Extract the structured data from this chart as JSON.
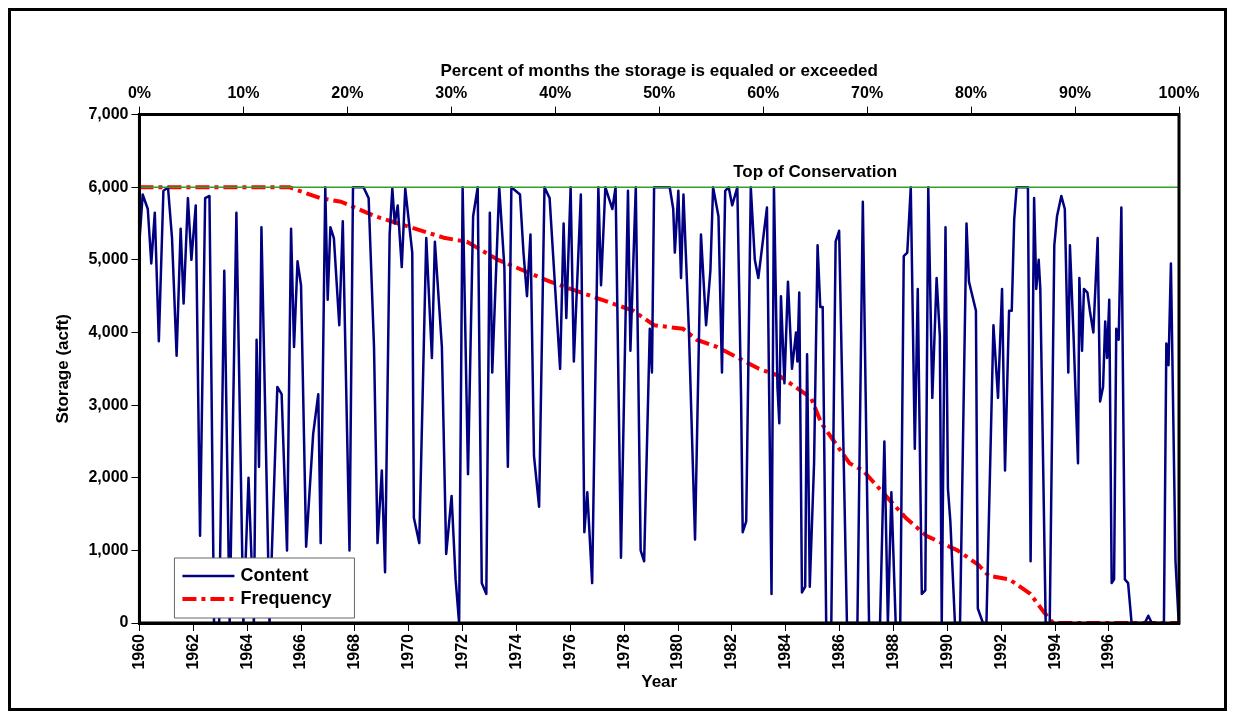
{
  "chart_data": {
    "type": "line",
    "xlabel": "Year",
    "x2label": "Percent of months the storage is equaled or exceeded",
    "ylabel": "Storage (acft)",
    "xlim": [
      1960,
      1998.6
    ],
    "xticks": [
      1960,
      1962,
      1964,
      1966,
      1968,
      1970,
      1972,
      1974,
      1976,
      1978,
      1980,
      1982,
      1984,
      1986,
      1988,
      1990,
      1992,
      1994,
      1996
    ],
    "x2lim": [
      0,
      100
    ],
    "x2ticks": [
      {
        "value": 0,
        "label": "0%"
      },
      {
        "value": 10,
        "label": "10%"
      },
      {
        "value": 20,
        "label": "20%"
      },
      {
        "value": 30,
        "label": "30%"
      },
      {
        "value": 40,
        "label": "40%"
      },
      {
        "value": 50,
        "label": "50%"
      },
      {
        "value": 60,
        "label": "60%"
      },
      {
        "value": 70,
        "label": "70%"
      },
      {
        "value": 80,
        "label": "80%"
      },
      {
        "value": 90,
        "label": "90%"
      },
      {
        "value": 100,
        "label": "100%"
      }
    ],
    "ylim": [
      0,
      7000
    ],
    "yticks": [
      0,
      {
        "value": 1000,
        "label": "1,000"
      },
      {
        "value": 2000,
        "label": "2,000"
      },
      {
        "value": 3000,
        "label": "3,000"
      },
      {
        "value": 4000,
        "label": "4,000"
      },
      {
        "value": 5000,
        "label": "5,000"
      },
      {
        "value": 6000,
        "label": "6,000"
      },
      {
        "value": 7000,
        "label": "7,000"
      }
    ],
    "grid": false,
    "legend": "bottom left",
    "marker": "none",
    "ref_lines": [
      {
        "axis": "y",
        "value": 6000,
        "label": "Top of Conservation",
        "color": "#33a02c"
      }
    ],
    "series": [
      {
        "name": "Content",
        "color": "#000080",
        "line_style": "solid",
        "x": [
          1960.0,
          1960.12,
          1960.31,
          1960.44,
          1960.57,
          1960.72,
          1960.89,
          1961.06,
          1961.21,
          1961.38,
          1961.53,
          1961.64,
          1961.8,
          1961.93,
          1962.09,
          1962.25,
          1962.44,
          1962.6,
          1962.77,
          1962.96,
          1963.15,
          1963.35,
          1963.6,
          1963.86,
          1964.05,
          1964.25,
          1964.35,
          1964.44,
          1964.53,
          1964.83,
          1965.12,
          1965.28,
          1965.48,
          1965.63,
          1965.74,
          1965.87,
          1966.0,
          1966.19,
          1966.45,
          1966.64,
          1966.73,
          1966.9,
          1966.99,
          1967.09,
          1967.22,
          1967.42,
          1967.55,
          1967.8,
          1967.93,
          1968.32,
          1968.51,
          1968.71,
          1968.84,
          1969.0,
          1969.12,
          1969.29,
          1969.39,
          1969.48,
          1969.59,
          1969.74,
          1969.87,
          1970.13,
          1970.19,
          1970.39,
          1970.65,
          1970.86,
          1970.97,
          1971.23,
          1971.39,
          1971.59,
          1971.74,
          1971.87,
          1972.0,
          1972.2,
          1972.39,
          1972.56,
          1972.71,
          1972.88,
          1973.01,
          1973.1,
          1973.36,
          1973.55,
          1973.68,
          1973.81,
          1974.13,
          1974.26,
          1974.39,
          1974.52,
          1974.65,
          1974.84,
          1975.04,
          1975.23,
          1975.62,
          1975.75,
          1975.85,
          1976.01,
          1976.13,
          1976.39,
          1976.52,
          1976.63,
          1976.81,
          1977.04,
          1977.14,
          1977.3,
          1977.56,
          1977.68,
          1977.88,
          1978.14,
          1978.23,
          1978.43,
          1978.61,
          1978.74,
          1978.95,
          1979.03,
          1979.11,
          1979.69,
          1979.82,
          1979.88,
          1980.01,
          1980.11,
          1980.2,
          1980.4,
          1980.63,
          1980.85,
          1981.04,
          1981.2,
          1981.3,
          1981.5,
          1981.63,
          1981.75,
          1981.88,
          1982.01,
          1982.2,
          1982.34,
          1982.4,
          1982.53,
          1982.7,
          1982.85,
          1982.98,
          1983.3,
          1983.47,
          1983.56,
          1983.69,
          1983.76,
          1983.82,
          1983.95,
          1984.08,
          1984.23,
          1984.38,
          1984.43,
          1984.5,
          1984.6,
          1984.72,
          1984.79,
          1984.89,
          1985.05,
          1985.18,
          1985.28,
          1985.37,
          1985.5,
          1985.69,
          1985.85,
          1985.98,
          1986.27,
          1986.66,
          1986.86,
          1987.09,
          1987.5,
          1987.66,
          1987.79,
          1987.92,
          1988.08,
          1988.25,
          1988.38,
          1988.51,
          1988.64,
          1988.79,
          1988.9,
          1989.05,
          1989.18,
          1989.29,
          1989.44,
          1989.6,
          1989.72,
          1989.79,
          1989.93,
          1990.02,
          1990.11,
          1990.28,
          1990.47,
          1990.71,
          1990.8,
          1991.06,
          1991.13,
          1991.32,
          1991.45,
          1991.71,
          1991.88,
          1992.03,
          1992.14,
          1992.29,
          1992.39,
          1992.48,
          1992.57,
          1992.99,
          1993.09,
          1993.22,
          1993.3,
          1993.39,
          1993.45,
          1993.65,
          1993.8,
          1993.97,
          1994.07,
          1994.23,
          1994.36,
          1994.49,
          1994.55,
          1994.68,
          1994.85,
          1994.9,
          1995.0,
          1995.07,
          1995.2,
          1995.29,
          1995.42,
          1995.58,
          1995.67,
          1995.78,
          1995.86,
          1995.93,
          1996.01,
          1996.1,
          1996.19,
          1996.27,
          1996.36,
          1996.46,
          1996.59,
          1996.71,
          1996.84,
          1997.33,
          1997.46,
          1997.59,
          1998.04,
          1998.13,
          1998.21,
          1998.3,
          1998.47,
          1998.59
        ],
        "values": [
          5250,
          5900,
          5700,
          4950,
          5650,
          3880,
          5950,
          6000,
          5300,
          3680,
          5430,
          4400,
          5850,
          5000,
          5750,
          1200,
          5850,
          5880,
          0,
          0,
          4850,
          0,
          5650,
          0,
          2000,
          0,
          3900,
          2150,
          5450,
          0,
          3250,
          3150,
          1000,
          5430,
          3800,
          4980,
          4650,
          1050,
          2600,
          3150,
          1100,
          6000,
          4450,
          5450,
          5300,
          4100,
          5530,
          1000,
          6000,
          6000,
          5850,
          3800,
          1100,
          2100,
          700,
          5350,
          5980,
          5500,
          5750,
          4900,
          5980,
          5100,
          1450,
          1100,
          5300,
          3650,
          5250,
          3800,
          950,
          1750,
          600,
          0,
          6000,
          2050,
          5600,
          6000,
          550,
          400,
          5650,
          3450,
          6000,
          4900,
          2150,
          6000,
          5900,
          5100,
          4500,
          5350,
          2300,
          1600,
          6000,
          5850,
          3500,
          5500,
          4200,
          6000,
          3600,
          5900,
          1250,
          1800,
          550,
          6000,
          4650,
          6000,
          5700,
          6000,
          900,
          5950,
          3750,
          6000,
          1000,
          850,
          4050,
          3450,
          6000,
          6000,
          5700,
          5100,
          5950,
          4750,
          5900,
          4050,
          1150,
          5350,
          4100,
          4850,
          6000,
          5600,
          3450,
          5950,
          6000,
          5750,
          6000,
          3100,
          1250,
          1400,
          6000,
          5000,
          4750,
          5720,
          400,
          6000,
          3250,
          2750,
          4500,
          3300,
          4700,
          3500,
          4000,
          3600,
          4550,
          420,
          500,
          3700,
          500,
          2200,
          5200,
          4350,
          4350,
          0,
          0,
          5250,
          5400,
          0,
          0,
          5800,
          0,
          0,
          2500,
          0,
          1800,
          0,
          0,
          5050,
          5100,
          6000,
          2400,
          4600,
          400,
          450,
          6000,
          3100,
          4750,
          3950,
          0,
          5450,
          1850,
          1400,
          0,
          0,
          5500,
          4700,
          4300,
          200,
          0,
          0,
          4100,
          3100,
          4600,
          2100,
          4300,
          4300,
          5550,
          6000,
          6000,
          850,
          5850,
          4600,
          5000,
          4600,
          0,
          0,
          5200,
          5600,
          5880,
          5700,
          3450,
          5200,
          4000,
          2200,
          4750,
          3750,
          4600,
          4550,
          4300,
          4000,
          5300,
          3050,
          3250,
          4150,
          3650,
          4450,
          550,
          600,
          4050,
          3900,
          5720,
          600,
          550,
          0,
          0,
          100,
          0,
          0,
          3850,
          3550,
          4950,
          850,
          0
        ]
      },
      {
        "name": "Frequency",
        "color": "#ff0000",
        "line_style": "dashed",
        "axis": "x2",
        "x": [
          0,
          14.4,
          17.4,
          19.4,
          22.7,
          29.4,
          31.5,
          34.5,
          39.5,
          43.5,
          47.5,
          49.5,
          52.3,
          53.6,
          55.6,
          59.6,
          61.6,
          64.6,
          65.6,
          68.3,
          69.6,
          73.7,
          75.7,
          78.7,
          80.7,
          81.7,
          83.7,
          85.7,
          87,
          87.9,
          100
        ],
        "values": [
          6000,
          6000,
          5850,
          5800,
          5600,
          5300,
          5250,
          5000,
          4700,
          4500,
          4300,
          4100,
          4050,
          3900,
          3800,
          3500,
          3400,
          3100,
          2750,
          2200,
          2100,
          1450,
          1200,
          1000,
          800,
          650,
          600,
          400,
          150,
          0,
          0
        ]
      }
    ]
  }
}
